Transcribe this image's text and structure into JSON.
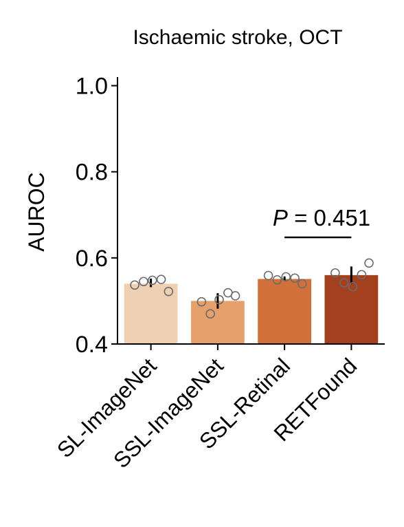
{
  "chart_data": {
    "type": "bar",
    "title": "Ischaemic stroke, OCT",
    "xlabel": "",
    "ylabel": "AUROC",
    "ylim": [
      0.4,
      1.02
    ],
    "yticks": [
      "0.4",
      "0.6",
      "0.8",
      "1.0"
    ],
    "categories": [
      "SL-ImageNet",
      "SSL-ImageNet",
      "SSL-Retinal",
      "RETFound"
    ],
    "values": [
      0.54,
      0.5,
      0.551,
      0.56
    ],
    "error": [
      [
        0.532,
        0.552
      ],
      [
        0.482,
        0.518
      ],
      [
        0.547,
        0.557
      ],
      [
        0.54,
        0.58
      ]
    ],
    "points": [
      [
        0.537,
        0.545,
        0.548,
        0.55,
        0.522
      ],
      [
        0.498,
        0.47,
        0.503,
        0.519,
        0.512
      ],
      [
        0.559,
        0.549,
        0.556,
        0.553,
        0.54
      ],
      [
        0.565,
        0.542,
        0.533,
        0.561,
        0.588
      ]
    ],
    "colors": [
      "#f0d0b2",
      "#e5a06b",
      "#d1703a",
      "#a3411f"
    ],
    "grid": false,
    "annotation": {
      "p_symbol": "P",
      "text": " = 0.451",
      "from_category": 2,
      "to_category": 3
    }
  }
}
